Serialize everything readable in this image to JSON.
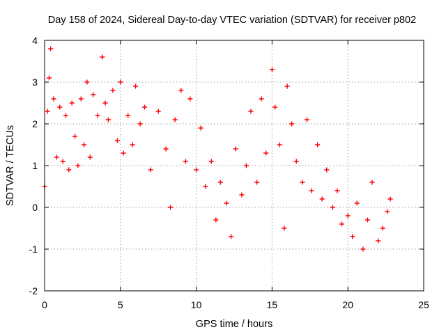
{
  "chart_data": {
    "type": "scatter",
    "title": "Day 158 of 2024, Sidereal Day-to-day VTEC variation (SDTVAR) for receiver p802",
    "xlabel": "GPS time / hours",
    "ylabel": "SDTVAR / TECUs",
    "xlim": [
      0,
      25
    ],
    "ylim": [
      -2,
      4
    ],
    "xticks": [
      "0",
      "5",
      "10",
      "15",
      "20",
      "25"
    ],
    "yticks": [
      "-2",
      "-1",
      "0",
      "1",
      "2",
      "3",
      "4"
    ],
    "grid": true,
    "marker": "+",
    "series": [
      {
        "name": "SDTVAR",
        "color": "#ff0000",
        "x": [
          0.0,
          0.2,
          0.3,
          0.4,
          0.6,
          0.8,
          1.0,
          1.2,
          1.4,
          1.6,
          1.8,
          2.0,
          2.2,
          2.4,
          2.6,
          2.8,
          3.0,
          3.2,
          3.5,
          3.8,
          4.0,
          4.2,
          4.5,
          4.8,
          5.0,
          5.2,
          5.5,
          5.8,
          6.0,
          6.3,
          6.6,
          7.0,
          7.5,
          8.0,
          8.3,
          8.6,
          9.0,
          9.3,
          9.6,
          10.0,
          10.3,
          10.6,
          11.0,
          11.3,
          11.6,
          12.0,
          12.3,
          12.6,
          13.0,
          13.3,
          13.6,
          14.0,
          14.3,
          14.6,
          15.0,
          15.2,
          15.5,
          15.8,
          16.0,
          16.3,
          16.6,
          17.0,
          17.3,
          17.6,
          18.0,
          18.3,
          18.6,
          19.0,
          19.3,
          19.6,
          20.0,
          20.3,
          20.6,
          21.0,
          21.3,
          21.6,
          22.0,
          22.3,
          22.6,
          22.8
        ],
        "y": [
          0.5,
          2.3,
          3.1,
          3.8,
          2.6,
          1.2,
          2.4,
          1.1,
          2.2,
          0.9,
          2.5,
          1.7,
          1.0,
          2.6,
          1.5,
          3.0,
          1.2,
          2.7,
          2.2,
          3.6,
          2.5,
          2.1,
          2.8,
          1.6,
          3.0,
          1.3,
          2.2,
          1.5,
          2.9,
          2.0,
          2.4,
          0.9,
          2.3,
          1.4,
          0.0,
          2.1,
          2.8,
          1.1,
          2.6,
          0.9,
          1.9,
          0.5,
          1.1,
          -0.3,
          0.6,
          0.1,
          -0.7,
          1.4,
          0.3,
          1.0,
          2.3,
          0.6,
          2.6,
          1.3,
          3.3,
          2.4,
          1.5,
          -0.5,
          2.9,
          2.0,
          1.1,
          0.6,
          2.1,
          0.4,
          1.5,
          0.2,
          0.9,
          0.0,
          0.4,
          -0.4,
          -0.2,
          -0.7,
          0.1,
          -1.0,
          -0.3,
          0.6,
          -0.8,
          -0.5,
          -0.1,
          0.2
        ]
      }
    ]
  }
}
